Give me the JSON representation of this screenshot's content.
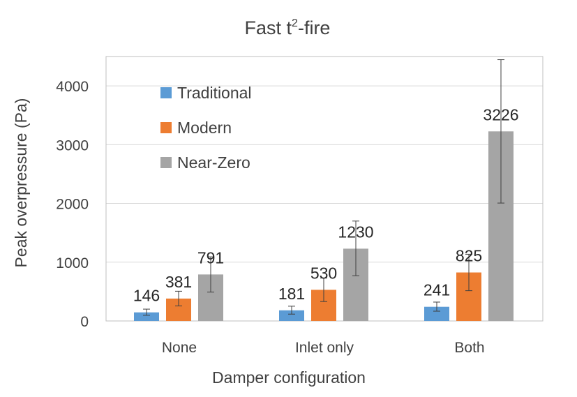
{
  "chart_data": {
    "type": "bar",
    "title": {
      "main": "Fast t",
      "superscript": "2",
      "suffix": "-fire"
    },
    "xlabel": "Damper configuration",
    "ylabel": "Peak overpressure (Pa)",
    "ylim": [
      0,
      4500
    ],
    "yticks": [
      0,
      1000,
      2000,
      3000,
      4000
    ],
    "grid": true,
    "legend_position": "top-left",
    "categories": [
      "None",
      "Inlet only",
      "Both"
    ],
    "series": [
      {
        "name": "Traditional",
        "color": "#5B9BD5",
        "values": [
          146,
          181,
          241
        ],
        "error_low": [
          96,
          116,
          166
        ],
        "error_high": [
          201,
          251,
          321
        ]
      },
      {
        "name": "Modern",
        "color": "#ED7D31",
        "values": [
          381,
          530,
          825
        ],
        "error_low": [
          256,
          330,
          515
        ],
        "error_high": [
          506,
          730,
          1135
        ]
      },
      {
        "name": "Near-Zero",
        "color": "#A5A5A5",
        "values": [
          791,
          1230,
          3226
        ],
        "error_low": [
          491,
          770,
          2006
        ],
        "error_high": [
          1091,
          1700,
          4446
        ]
      }
    ]
  }
}
